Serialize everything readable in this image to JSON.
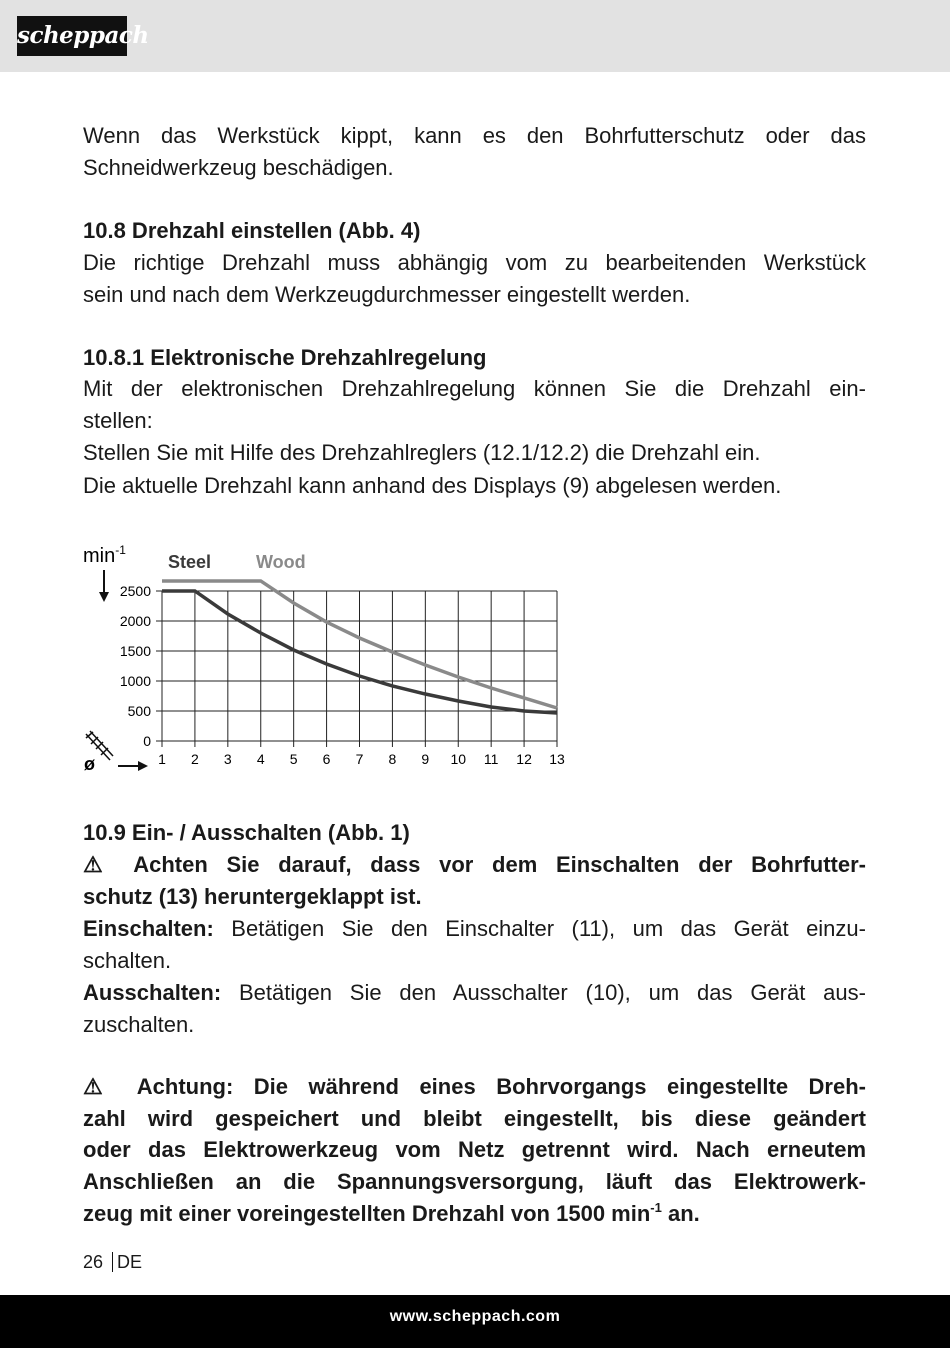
{
  "header": {
    "logo": "scheppach"
  },
  "content": [
    {
      "lines": [
        "Wenn das Werkstück kippt, kann es den Bohrfutterschutz oder das",
        "Schneidwerkzeug beschädigen."
      ]
    },
    {
      "lines": [
        "10.8 Drehzahl einstellen (Abb. 4)"
      ]
    },
    {
      "lines": [
        "Die richtige Drehzahl muss abhängig vom zu bearbeitenden Werkstück",
        "sein und nach dem Werkzeugdurchmesser eingestellt werden."
      ]
    },
    {
      "lines": [
        "10.8.1 Elektronische Drehzahlregelung"
      ]
    },
    {
      "lines": [
        "Mit der elektronischen Drehzahlregelung können Sie die Drehzahl ein-",
        "stellen:"
      ]
    },
    {
      "lines": [
        "Stellen Sie mit Hilfe des Drehzahlreglers (12.1/12.2) die Drehzahl ein."
      ]
    },
    {
      "lines": [
        "Die aktuelle Drehzahl kann anhand des Displays (9) abgelesen werden."
      ]
    },
    {
      "lines": [
        "10.9 Ein- / Ausschalten (Abb. 1)"
      ]
    },
    {
      "lines": [
        "⚠ Achten Sie darauf, dass vor dem Einschalten der Bohrfutter-",
        "schutz (13) heruntergeklappt ist."
      ]
    },
    {
      "label": "Einschalten:",
      "lines": [
        "Betätigen Sie den Einschalter (11), um das Gerät einzu-",
        "schalten."
      ]
    },
    {
      "label": "Ausschalten:",
      "lines": [
        "Betätigen Sie den Ausschalter (10), um das Gerät aus-",
        "zuschalten."
      ]
    },
    {
      "lines": [
        "⚠ Achtung: Die während eines Bohrvorgangs eingestellte Dreh-",
        "zahl wird gespeichert und bleibt eingestellt, bis diese geändert",
        "oder das Elektrowerkzeug vom Netz getrennt wird. Nach erneutem",
        "Anschließen an die Spannungsversorgung, läuft das Elektrowerk-",
        {
          "text": "zeug mit einer voreingestellten Drehzahl von 1500 min",
          "sup": "-1",
          "after": "an."
        }
      ]
    }
  ],
  "chart_data": {
    "type": "line",
    "y_label": "min",
    "y_label_sup": "-1",
    "x_label": "ø",
    "x": [
      1,
      2,
      3,
      4,
      5,
      6,
      7,
      8,
      9,
      10,
      11,
      12,
      13
    ],
    "xlim": [
      1,
      13
    ],
    "xticks": [
      1,
      2,
      3,
      4,
      5,
      6,
      7,
      8,
      9,
      10,
      11,
      12,
      13
    ],
    "ylim": [
      0,
      2500
    ],
    "yticks": [
      0,
      500,
      1000,
      1500,
      2000,
      2500
    ],
    "grid": true,
    "series": [
      {
        "name": "Steel",
        "color": "#3a3a3a",
        "values": [
          2500,
          2500,
          2117,
          1800,
          1517,
          1283,
          1083,
          917,
          783,
          667,
          567,
          500,
          467
        ]
      },
      {
        "name": "Wood",
        "color": "#8a8a8a",
        "values": [
          2667,
          2667,
          2667,
          2667,
          2300,
          1983,
          1717,
          1483,
          1267,
          1067,
          883,
          717,
          550
        ]
      }
    ]
  },
  "footer": {
    "page": "26",
    "lang": "DE",
    "url": "www.scheppach.com"
  }
}
